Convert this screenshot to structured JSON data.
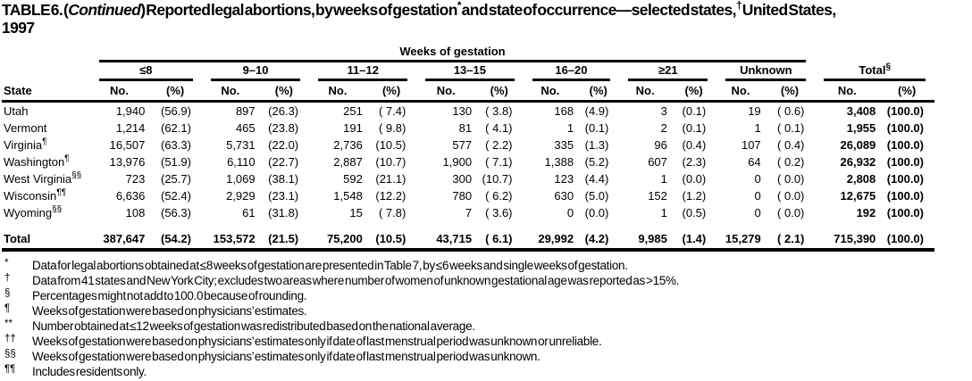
{
  "colors": {
    "text": "#000000",
    "background": "#ffffff",
    "rules": "#000000"
  },
  "title": {
    "part1": "TABLE 6. (",
    "continued": "Continued",
    "part3": ") Reported legal abortions, by weeks of gestation",
    "sup1": "*",
    "part4": " and state of occurrence—selected states,",
    "sup2": "†",
    "part5": " United States,",
    "year": "1997"
  },
  "table": {
    "spanner": "Weeks of gestation",
    "state_label": "State",
    "groups": [
      "≤8",
      "9–10",
      "11–12",
      "13–15",
      "16–20",
      "≥21",
      "Unknown"
    ],
    "total_group": {
      "label": "Total",
      "sup": "§"
    },
    "sub_headers": {
      "no": "No.",
      "pct": "(%)"
    },
    "rows": [
      {
        "state": "Utah",
        "sup": "",
        "values": [
          "1,940",
          "(56.9)",
          "897",
          "(26.3)",
          "251",
          "( 7.4)",
          "130",
          "( 3.8)",
          "168",
          "(4.9)",
          "3",
          "(0.1)",
          "19",
          "( 0.6)",
          "3,408",
          "(100.0)"
        ]
      },
      {
        "state": "Vermont",
        "sup": "",
        "values": [
          "1,214",
          "(62.1)",
          "465",
          "(23.8)",
          "191",
          "( 9.8)",
          "81",
          "( 4.1)",
          "1",
          "(0.1)",
          "2",
          "(0.1)",
          "1",
          "( 0.1)",
          "1,955",
          "(100.0)"
        ]
      },
      {
        "state": "Virginia",
        "sup": "¶",
        "values": [
          "16,507",
          "(63.3)",
          "5,731",
          "(22.0)",
          "2,736",
          "(10.5)",
          "577",
          "( 2.2)",
          "335",
          "(1.3)",
          "96",
          "(0.4)",
          "107",
          "( 0.4)",
          "26,089",
          "(100.0)"
        ]
      },
      {
        "state": "Washington",
        "sup": "¶",
        "values": [
          "13,976",
          "(51.9)",
          "6,110",
          "(22.7)",
          "2,887",
          "(10.7)",
          "1,900",
          "( 7.1)",
          "1,388",
          "(5.2)",
          "607",
          "(2.3)",
          "64",
          "( 0.2)",
          "26,932",
          "(100.0)"
        ]
      },
      {
        "state": "West Virginia",
        "sup": "§§",
        "values": [
          "723",
          "(25.7)",
          "1,069",
          "(38.1)",
          "592",
          "(21.1)",
          "300",
          "(10.7)",
          "123",
          "(4.4)",
          "1",
          "(0.0)",
          "0",
          "( 0.0)",
          "2,808",
          "(100.0)"
        ]
      },
      {
        "state": "Wisconsin",
        "sup": "¶¶",
        "values": [
          "6,636",
          "(52.4)",
          "2,929",
          "(23.1)",
          "1,548",
          "(12.2)",
          "780",
          "( 6.2)",
          "630",
          "(5.0)",
          "152",
          "(1.2)",
          "0",
          "( 0.0)",
          "12,675",
          "(100.0)"
        ]
      },
      {
        "state": "Wyoming",
        "sup": "§§",
        "values": [
          "108",
          "(56.3)",
          "61",
          "(31.8)",
          "15",
          "( 7.8)",
          "7",
          "( 3.6)",
          "0",
          "(0.0)",
          "1",
          "(0.5)",
          "0",
          "( 0.0)",
          "192",
          "(100.0)"
        ]
      }
    ],
    "total_row": {
      "state": "Total",
      "sup": "",
      "values": [
        "387,647",
        "(54.2)",
        "153,572",
        "(21.5)",
        "75,200",
        "(10.5)",
        "43,715",
        "( 6.1)",
        "29,992",
        "(4.2)",
        "9,985",
        "(1.4)",
        "15,279",
        "( 2.1)",
        "715,390",
        "(100.0)"
      ]
    }
  },
  "footnotes": [
    {
      "marker": "*",
      "text": "Data for legal abortions obtained at ≤8 weeks of gestation are presented in Table 7, by ≤6 weeks and single weeks of gestation."
    },
    {
      "marker": "†",
      "text": "Data from 41 states and New York City; excludes two areas where number of women of unknown gestational age was reported as >15%."
    },
    {
      "marker": "§",
      "text": "Percentages might not add to 100.0 because of rounding."
    },
    {
      "marker": "¶",
      "text": "Weeks of gestation were based on physicians’ estimates."
    },
    {
      "marker": "**",
      "text": "Number obtained at ≤12 weeks of gestation was redistributed based on the national average."
    },
    {
      "marker": "††",
      "text": "Weeks of gestation were based on physicians’ estimates only if date of last menstrual period was unknown or unreliable."
    },
    {
      "marker": "§§",
      "text": "Weeks of gestation were based on physicians’ estimates only if date of last menstrual period was unknown."
    },
    {
      "marker": "¶¶",
      "text": "Includes residents only."
    }
  ]
}
